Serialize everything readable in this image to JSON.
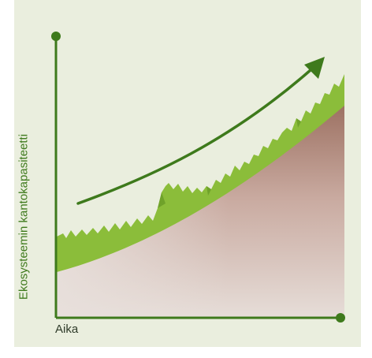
{
  "diagram": {
    "y_axis_label": "Ekosysteemin kantokapasiteetti",
    "x_axis_label": "Aika"
  },
  "colors": {
    "background": "#eaeede",
    "axis": "#3e7a1c",
    "grass": "#8bbd3a",
    "grass_dark": "#6fa22a",
    "soil_top": "#a67c6c",
    "soil_bottom": "#e6ded9",
    "arrow": "#3e7a1c"
  }
}
